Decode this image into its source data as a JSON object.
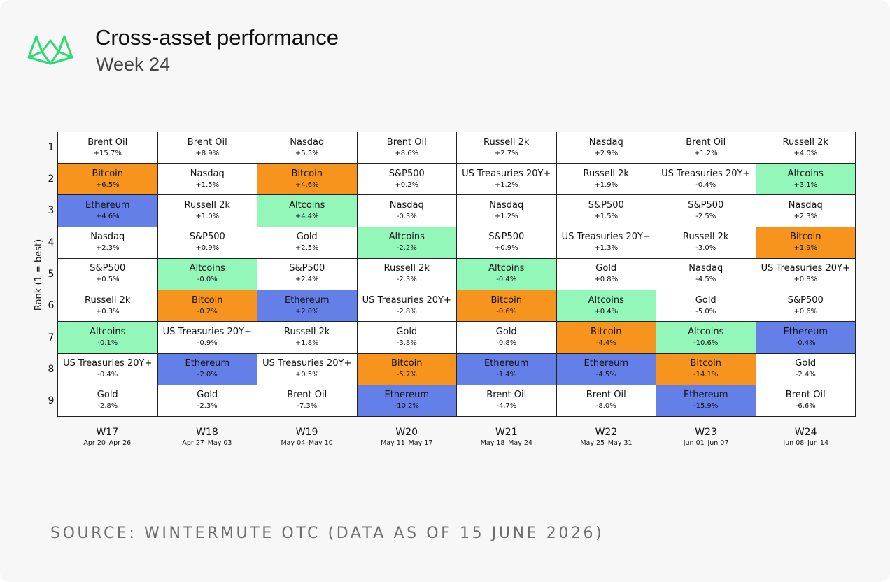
{
  "header": {
    "title": "Cross-asset performance",
    "subtitle": "Week 24"
  },
  "footer": {
    "source": "SOURCE: WINTERMUTE OTC (DATA AS OF 15 JUNE 2026)"
  },
  "colors": {
    "Bitcoin": "#f7941d",
    "Ethereum": "#6480e8",
    "Altcoins": "#93f7b9",
    "default": "#ffffff",
    "logo": "#2ddb74"
  },
  "chart_data": {
    "type": "table",
    "ylabel": "Rank (1 = best)",
    "ranks": [
      "1",
      "2",
      "3",
      "4",
      "5",
      "6",
      "7",
      "8",
      "9"
    ],
    "weeks": [
      {
        "label": "W17",
        "range": "Apr 20–Apr 26",
        "assets": [
          {
            "name": "Brent Oil",
            "return": "+15.7%"
          },
          {
            "name": "Bitcoin",
            "return": "+6.5%"
          },
          {
            "name": "Ethereum",
            "return": "+4.6%"
          },
          {
            "name": "Nasdaq",
            "return": "+2.3%"
          },
          {
            "name": "S&P500",
            "return": "+0.5%"
          },
          {
            "name": "Russell 2k",
            "return": "+0.3%"
          },
          {
            "name": "Altcoins",
            "return": "-0.1%"
          },
          {
            "name": "US Treasuries 20Y+",
            "return": "-0.4%"
          },
          {
            "name": "Gold",
            "return": "-2.8%"
          }
        ]
      },
      {
        "label": "W18",
        "range": "Apr 27–May 03",
        "assets": [
          {
            "name": "Brent Oil",
            "return": "+8.9%"
          },
          {
            "name": "Nasdaq",
            "return": "+1.5%"
          },
          {
            "name": "Russell 2k",
            "return": "+1.0%"
          },
          {
            "name": "S&P500",
            "return": "+0.9%"
          },
          {
            "name": "Altcoins",
            "return": "-0.0%"
          },
          {
            "name": "Bitcoin",
            "return": "-0.2%"
          },
          {
            "name": "US Treasuries 20Y+",
            "return": "-0.9%"
          },
          {
            "name": "Ethereum",
            "return": "-2.0%"
          },
          {
            "name": "Gold",
            "return": "-2.3%"
          }
        ]
      },
      {
        "label": "W19",
        "range": "May 04–May 10",
        "assets": [
          {
            "name": "Nasdaq",
            "return": "+5.5%"
          },
          {
            "name": "Bitcoin",
            "return": "+4.6%"
          },
          {
            "name": "Altcoins",
            "return": "+4.4%"
          },
          {
            "name": "Gold",
            "return": "+2.5%"
          },
          {
            "name": "S&P500",
            "return": "+2.4%"
          },
          {
            "name": "Ethereum",
            "return": "+2.0%"
          },
          {
            "name": "Russell 2k",
            "return": "+1.8%"
          },
          {
            "name": "US Treasuries 20Y+",
            "return": "+0.5%"
          },
          {
            "name": "Brent Oil",
            "return": "-7.3%"
          }
        ]
      },
      {
        "label": "W20",
        "range": "May 11–May 17",
        "assets": [
          {
            "name": "Brent Oil",
            "return": "+8.6%"
          },
          {
            "name": "S&P500",
            "return": "+0.2%"
          },
          {
            "name": "Nasdaq",
            "return": "-0.3%"
          },
          {
            "name": "Altcoins",
            "return": "-2.2%"
          },
          {
            "name": "Russell 2k",
            "return": "-2.3%"
          },
          {
            "name": "US Treasuries 20Y+",
            "return": "-2.8%"
          },
          {
            "name": "Gold",
            "return": "-3.8%"
          },
          {
            "name": "Bitcoin",
            "return": "-5.7%"
          },
          {
            "name": "Ethereum",
            "return": "-10.2%"
          }
        ]
      },
      {
        "label": "W21",
        "range": "May 18–May 24",
        "assets": [
          {
            "name": "Russell 2k",
            "return": "+2.7%"
          },
          {
            "name": "US Treasuries 20Y+",
            "return": "+1.2%"
          },
          {
            "name": "Nasdaq",
            "return": "+1.2%"
          },
          {
            "name": "S&P500",
            "return": "+0.9%"
          },
          {
            "name": "Altcoins",
            "return": "-0.4%"
          },
          {
            "name": "Bitcoin",
            "return": "-0.6%"
          },
          {
            "name": "Gold",
            "return": "-0.8%"
          },
          {
            "name": "Ethereum",
            "return": "-1.4%"
          },
          {
            "name": "Brent Oil",
            "return": "-4.7%"
          }
        ]
      },
      {
        "label": "W22",
        "range": "May 25–May 31",
        "assets": [
          {
            "name": "Nasdaq",
            "return": "+2.9%"
          },
          {
            "name": "Russell 2k",
            "return": "+1.9%"
          },
          {
            "name": "S&P500",
            "return": "+1.5%"
          },
          {
            "name": "US Treasuries 20Y+",
            "return": "+1.3%"
          },
          {
            "name": "Gold",
            "return": "+0.8%"
          },
          {
            "name": "Altcoins",
            "return": "+0.4%"
          },
          {
            "name": "Bitcoin",
            "return": "-4.4%"
          },
          {
            "name": "Ethereum",
            "return": "-4.5%"
          },
          {
            "name": "Brent Oil",
            "return": "-8.0%"
          }
        ]
      },
      {
        "label": "W23",
        "range": "Jun 01–Jun 07",
        "assets": [
          {
            "name": "Brent Oil",
            "return": "+1.2%"
          },
          {
            "name": "US Treasuries 20Y+",
            "return": "-0.4%"
          },
          {
            "name": "S&P500",
            "return": "-2.5%"
          },
          {
            "name": "Russell 2k",
            "return": "-3.0%"
          },
          {
            "name": "Nasdaq",
            "return": "-4.5%"
          },
          {
            "name": "Gold",
            "return": "-5.0%"
          },
          {
            "name": "Altcoins",
            "return": "-10.6%"
          },
          {
            "name": "Bitcoin",
            "return": "-14.1%"
          },
          {
            "name": "Ethereum",
            "return": "-15.9%"
          }
        ]
      },
      {
        "label": "W24",
        "range": "Jun 08–Jun 14",
        "assets": [
          {
            "name": "Russell 2k",
            "return": "+4.0%"
          },
          {
            "name": "Altcoins",
            "return": "+3.1%"
          },
          {
            "name": "Nasdaq",
            "return": "+2.3%"
          },
          {
            "name": "Bitcoin",
            "return": "+1.9%"
          },
          {
            "name": "US Treasuries 20Y+",
            "return": "+0.8%"
          },
          {
            "name": "S&P500",
            "return": "+0.6%"
          },
          {
            "name": "Ethereum",
            "return": "-0.4%"
          },
          {
            "name": "Gold",
            "return": "-2.4%"
          },
          {
            "name": "Brent Oil",
            "return": "-6.6%"
          }
        ]
      }
    ]
  }
}
